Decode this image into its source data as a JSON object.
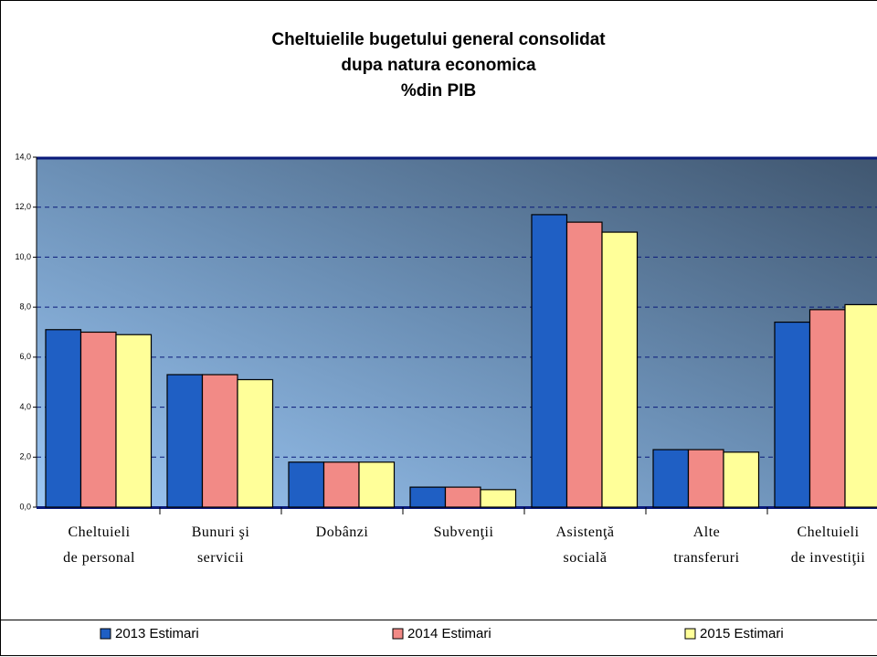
{
  "chart_data": {
    "type": "bar",
    "title": "Cheltuielile bugetului general consolidat\ndupa natura economica\n%din PIB",
    "categories": [
      "Cheltuieli\nde personal",
      "Bunuri şi\nservicii",
      "Dobânzi",
      "Subvenţii",
      "Asistenţă\nsocială",
      "Alte\ntransferuri",
      "Cheltuieli\nde investiţii"
    ],
    "series": [
      {
        "name": "2013 Estimari",
        "color": "#1f5fc4",
        "values": [
          7.1,
          5.3,
          1.8,
          0.8,
          11.7,
          2.3,
          7.4
        ]
      },
      {
        "name": "2014 Estimari",
        "color": "#f28a86",
        "values": [
          7.0,
          5.3,
          1.8,
          0.8,
          11.4,
          2.3,
          7.9
        ]
      },
      {
        "name": "2015 Estimari",
        "color": "#ffff99",
        "values": [
          6.9,
          5.1,
          1.8,
          0.7,
          11.0,
          2.2,
          8.1
        ]
      }
    ],
    "ylim": [
      0,
      14
    ],
    "yticks": [
      {
        "value": 0,
        "label": "0,0"
      },
      {
        "value": 2,
        "label": "2,0"
      },
      {
        "value": 4,
        "label": "4,0"
      },
      {
        "value": 6,
        "label": "6,0"
      },
      {
        "value": 8,
        "label": "8,0"
      },
      {
        "value": 10,
        "label": "10,0"
      },
      {
        "value": 12,
        "label": "12,0"
      },
      {
        "value": 14,
        "label": "14,0"
      }
    ],
    "grid": true,
    "legend": "bottom"
  }
}
